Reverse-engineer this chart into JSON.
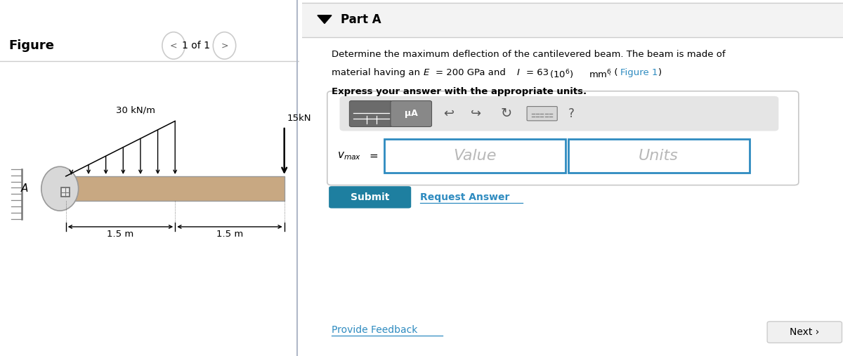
{
  "bg_color": "#ffffff",
  "figure_label": "Figure",
  "page_label": "1 of 1",
  "part_label": "Part A",
  "problem_line1": "Determine the maximum deflection of the cantilevered beam. The beam is made of",
  "express_text": "Express your answer with the appropriate units.",
  "beam_color": "#c8a882",
  "beam_edge_color": "#999999",
  "dist_load_label": "30 kN/m",
  "point_load_label": "15kN",
  "dim1": "1.5 m",
  "dim2": "1.5 m",
  "label_A": "A",
  "submit_color": "#1e7fa0",
  "submit_text": "Submit",
  "request_answer_text": "Request Answer",
  "provide_feedback_text": "Provide Feedback",
  "next_text": "Next ›",
  "value_placeholder": "Value",
  "units_placeholder": "Units",
  "divider_color": "#cccccc",
  "link_color": "#2e8bc0",
  "part_bar_color": "#f3f3f3",
  "toolbar_bg": "#e5e5e5",
  "btn1_color": "#6b6b6b",
  "btn2_color": "#888888"
}
